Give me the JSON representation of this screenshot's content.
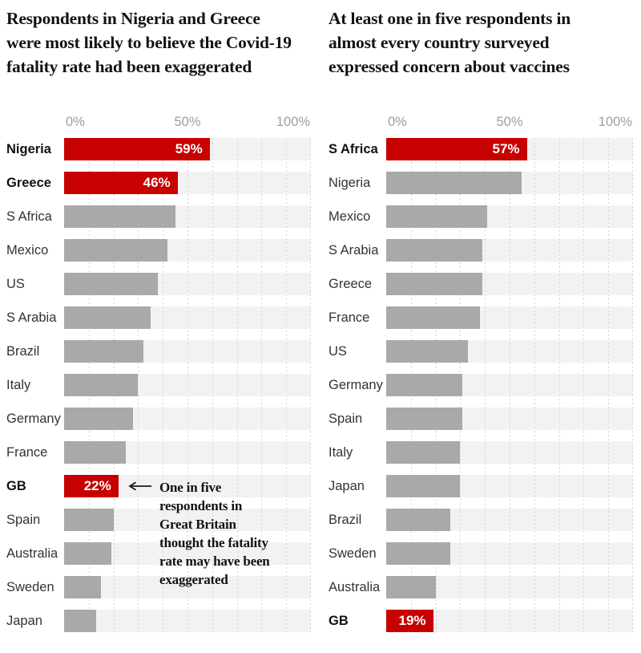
{
  "colors": {
    "accent-red": "#c70000",
    "bar-gray": "#a9a9a9",
    "track": "#f2f2f2",
    "grid-dot": "#d4d4d4",
    "axis-label": "#9e9e9e",
    "label": "#333333",
    "label-highlight": "#121212",
    "title": "#121212",
    "value-label": "#ffffff"
  },
  "chart_data": [
    {
      "type": "bar",
      "orientation": "horizontal",
      "title": "Respondents in Nigeria and Greece were most likely to believe the Covid-19 fatality rate had been exaggerated",
      "unit": "%",
      "xlim": [
        0,
        100
      ],
      "x_ticks": [
        "0%",
        "50%",
        "100%"
      ],
      "grid": "dotted vertical lines every 10%",
      "legend": "none",
      "rows": [
        {
          "label": "Nigeria",
          "value": 59,
          "highlight": true,
          "value_label": "59%"
        },
        {
          "label": "Greece",
          "value": 46,
          "highlight": true,
          "value_label": "46%"
        },
        {
          "label": "S Africa",
          "value": 45,
          "highlight": false
        },
        {
          "label": "Mexico",
          "value": 42,
          "highlight": false
        },
        {
          "label": "US",
          "value": 38,
          "highlight": false
        },
        {
          "label": "S Arabia",
          "value": 35,
          "highlight": false
        },
        {
          "label": "Brazil",
          "value": 32,
          "highlight": false
        },
        {
          "label": "Italy",
          "value": 30,
          "highlight": false
        },
        {
          "label": "Germany",
          "value": 28,
          "highlight": false
        },
        {
          "label": "France",
          "value": 25,
          "highlight": false
        },
        {
          "label": "GB",
          "value": 22,
          "highlight": true,
          "value_label": "22%"
        },
        {
          "label": "Spain",
          "value": 20,
          "highlight": false
        },
        {
          "label": "Australia",
          "value": 19,
          "highlight": false
        },
        {
          "label": "Sweden",
          "value": 15,
          "highlight": false
        },
        {
          "label": "Japan",
          "value": 13,
          "highlight": false
        }
      ],
      "annotation": {
        "target": "GB",
        "text": "One in five\nrespondents in\nGreat Britain\nthought the fatality\nrate may have been\nexaggerated"
      }
    },
    {
      "type": "bar",
      "orientation": "horizontal",
      "title": "At least one in five respondents in almost every country surveyed expressed concern about vaccines",
      "unit": "%",
      "xlim": [
        0,
        100
      ],
      "x_ticks": [
        "0%",
        "50%",
        "100%"
      ],
      "grid": "dotted vertical lines every 10%",
      "legend": "none",
      "rows": [
        {
          "label": "S Africa",
          "value": 57,
          "highlight": true,
          "value_label": "57%"
        },
        {
          "label": "Nigeria",
          "value": 55,
          "highlight": false
        },
        {
          "label": "Mexico",
          "value": 41,
          "highlight": false
        },
        {
          "label": "S Arabia",
          "value": 39,
          "highlight": false
        },
        {
          "label": "Greece",
          "value": 39,
          "highlight": false
        },
        {
          "label": "France",
          "value": 38,
          "highlight": false
        },
        {
          "label": "US",
          "value": 33,
          "highlight": false
        },
        {
          "label": "Germany",
          "value": 31,
          "highlight": false
        },
        {
          "label": "Spain",
          "value": 31,
          "highlight": false
        },
        {
          "label": "Italy",
          "value": 30,
          "highlight": false
        },
        {
          "label": "Japan",
          "value": 30,
          "highlight": false
        },
        {
          "label": "Brazil",
          "value": 26,
          "highlight": false
        },
        {
          "label": "Sweden",
          "value": 26,
          "highlight": false
        },
        {
          "label": "Australia",
          "value": 20,
          "highlight": false
        },
        {
          "label": "GB",
          "value": 19,
          "highlight": true,
          "value_label": "19%"
        }
      ]
    }
  ]
}
